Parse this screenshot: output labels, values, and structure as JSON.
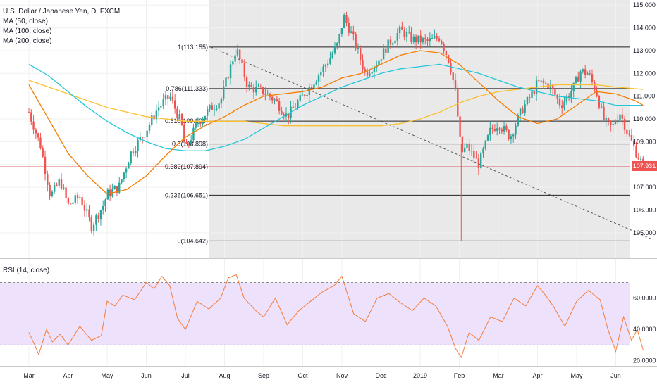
{
  "legend": {
    "title": "U.S. Dollar / Japanese Yen, D, FXCM",
    "ma50": "MA (50, close)",
    "ma100": "MA (100, close)",
    "ma200": "MA (200, close)",
    "rsi": "RSI (14, close)"
  },
  "colors": {
    "up": "#26a69a",
    "down": "#ef5350",
    "ma50": "#f57c00",
    "ma100": "#26c6da",
    "ma200": "#fbc02d",
    "rsi": "#f57c3a",
    "rsi_band": "#ede1fb",
    "shade": "#e9e9e9",
    "fib_line": "#222222",
    "fib_382": "#d32f2f"
  },
  "chart_data": [
    {
      "type": "candlestick",
      "symbol": "U.S. Dollar / Japanese Yen, D, FXCM",
      "x_ticks": [
        "Mar",
        "Apr",
        "May",
        "Jun",
        "Jul",
        "Aug",
        "Sep",
        "Oct",
        "Nov",
        "Dec",
        "2019",
        "Feb",
        "Mar",
        "Apr",
        "May",
        "Jun"
      ],
      "y_ticks": [
        "115.000",
        "114.000",
        "113.000",
        "112.000",
        "111.000",
        "110.000",
        "109.000",
        "108.000",
        "107.000",
        "106.000",
        "105.000"
      ],
      "ylim": [
        104.5,
        115.1
      ],
      "last_price": "107.931",
      "fib_levels": [
        {
          "label": "1(113.155)",
          "value": 113.155
        },
        {
          "label": "0.786(111.333)",
          "value": 111.333
        },
        {
          "label": "0.618(109.903)",
          "value": 109.903
        },
        {
          "label": "0.5(108.898)",
          "value": 108.898
        },
        {
          "label": "0.382(107.894)",
          "value": 107.894
        },
        {
          "label": "0.236(106.651)",
          "value": 106.651
        },
        {
          "label": "0(104.642)",
          "value": 104.642
        }
      ],
      "trend_line": {
        "from": {
          "x": "Jul",
          "y": 113.155
        },
        "to": {
          "x": "Jun",
          "y": 104.7
        }
      },
      "price_path": [
        {
          "x": 0.0,
          "y": 110.3
        },
        {
          "x": 0.3,
          "y": 108.8
        },
        {
          "x": 0.55,
          "y": 106.6
        },
        {
          "x": 0.8,
          "y": 107.3
        },
        {
          "x": 1.0,
          "y": 106.2
        },
        {
          "x": 1.3,
          "y": 106.6
        },
        {
          "x": 1.6,
          "y": 105.3
        },
        {
          "x": 1.9,
          "y": 106.2
        },
        {
          "x": 2.0,
          "y": 106.7
        },
        {
          "x": 2.3,
          "y": 107.0
        },
        {
          "x": 2.6,
          "y": 108.5
        },
        {
          "x": 3.0,
          "y": 109.5
        },
        {
          "x": 3.3,
          "y": 110.5
        },
        {
          "x": 3.6,
          "y": 111.0
        },
        {
          "x": 3.9,
          "y": 109.8
        },
        {
          "x": 4.0,
          "y": 108.6
        },
        {
          "x": 4.3,
          "y": 109.8
        },
        {
          "x": 4.6,
          "y": 110.4
        },
        {
          "x": 4.9,
          "y": 110.8
        },
        {
          "x": 5.1,
          "y": 112.0
        },
        {
          "x": 5.3,
          "y": 113.1
        },
        {
          "x": 5.6,
          "y": 111.4
        },
        {
          "x": 6.0,
          "y": 111.2
        },
        {
          "x": 6.3,
          "y": 110.8
        },
        {
          "x": 6.6,
          "y": 110.1
        },
        {
          "x": 7.0,
          "y": 111.0
        },
        {
          "x": 7.3,
          "y": 111.7
        },
        {
          "x": 7.6,
          "y": 112.4
        },
        {
          "x": 7.9,
          "y": 113.3
        },
        {
          "x": 8.05,
          "y": 114.5
        },
        {
          "x": 8.3,
          "y": 113.5
        },
        {
          "x": 8.6,
          "y": 112.0
        },
        {
          "x": 8.9,
          "y": 112.5
        },
        {
          "x": 9.2,
          "y": 113.3
        },
        {
          "x": 9.5,
          "y": 113.9
        },
        {
          "x": 9.8,
          "y": 113.5
        },
        {
          "x": 10.2,
          "y": 113.4
        },
        {
          "x": 10.5,
          "y": 113.6
        },
        {
          "x": 10.75,
          "y": 112.5
        },
        {
          "x": 10.9,
          "y": 111.2
        },
        {
          "x": 11.05,
          "y": 108.5
        },
        {
          "x": 11.2,
          "y": 108.8
        },
        {
          "x": 11.5,
          "y": 108.0
        },
        {
          "x": 11.8,
          "y": 109.5
        },
        {
          "x": 12.0,
          "y": 109.8
        },
        {
          "x": 12.3,
          "y": 109.2
        },
        {
          "x": 12.6,
          "y": 110.4
        },
        {
          "x": 12.9,
          "y": 111.2
        },
        {
          "x": 13.0,
          "y": 111.6
        },
        {
          "x": 13.3,
          "y": 111.5
        },
        {
          "x": 13.6,
          "y": 110.6
        },
        {
          "x": 13.9,
          "y": 111.3
        },
        {
          "x": 14.1,
          "y": 112.1
        },
        {
          "x": 14.3,
          "y": 112.0
        },
        {
          "x": 14.5,
          "y": 111.2
        },
        {
          "x": 14.7,
          "y": 109.9
        },
        {
          "x": 14.9,
          "y": 109.6
        },
        {
          "x": 15.1,
          "y": 110.3
        },
        {
          "x": 15.3,
          "y": 109.4
        },
        {
          "x": 15.5,
          "y": 108.6
        },
        {
          "x": 15.7,
          "y": 107.95
        }
      ],
      "ma50": [
        {
          "x": 0.0,
          "y": 111.5
        },
        {
          "x": 0.5,
          "y": 110.0
        },
        {
          "x": 1.0,
          "y": 108.5
        },
        {
          "x": 1.5,
          "y": 107.5
        },
        {
          "x": 2.0,
          "y": 106.7
        },
        {
          "x": 2.5,
          "y": 106.9
        },
        {
          "x": 3.0,
          "y": 107.5
        },
        {
          "x": 3.5,
          "y": 108.4
        },
        {
          "x": 4.0,
          "y": 109.2
        },
        {
          "x": 4.5,
          "y": 109.7
        },
        {
          "x": 5.0,
          "y": 110.1
        },
        {
          "x": 5.5,
          "y": 110.6
        },
        {
          "x": 6.0,
          "y": 111.0
        },
        {
          "x": 6.5,
          "y": 111.1
        },
        {
          "x": 7.0,
          "y": 111.2
        },
        {
          "x": 7.5,
          "y": 111.4
        },
        {
          "x": 8.0,
          "y": 111.8
        },
        {
          "x": 8.5,
          "y": 112.0
        },
        {
          "x": 9.0,
          "y": 112.4
        },
        {
          "x": 9.5,
          "y": 112.8
        },
        {
          "x": 10.0,
          "y": 113.0
        },
        {
          "x": 10.5,
          "y": 112.9
        },
        {
          "x": 11.0,
          "y": 112.4
        },
        {
          "x": 11.5,
          "y": 111.6
        },
        {
          "x": 12.0,
          "y": 110.8
        },
        {
          "x": 12.5,
          "y": 110.1
        },
        {
          "x": 13.0,
          "y": 109.8
        },
        {
          "x": 13.5,
          "y": 110.0
        },
        {
          "x": 14.0,
          "y": 110.6
        },
        {
          "x": 14.5,
          "y": 111.2
        },
        {
          "x": 15.0,
          "y": 111.1
        },
        {
          "x": 15.5,
          "y": 110.8
        },
        {
          "x": 15.7,
          "y": 110.6
        }
      ],
      "ma100": [
        {
          "x": 0.0,
          "y": 112.4
        },
        {
          "x": 0.5,
          "y": 111.9
        },
        {
          "x": 1.0,
          "y": 111.2
        },
        {
          "x": 1.5,
          "y": 110.5
        },
        {
          "x": 2.0,
          "y": 109.9
        },
        {
          "x": 2.5,
          "y": 109.4
        },
        {
          "x": 3.0,
          "y": 109.0
        },
        {
          "x": 3.5,
          "y": 108.7
        },
        {
          "x": 4.0,
          "y": 108.6
        },
        {
          "x": 4.5,
          "y": 108.6
        },
        {
          "x": 5.0,
          "y": 108.8
        },
        {
          "x": 5.5,
          "y": 109.1
        },
        {
          "x": 6.0,
          "y": 109.6
        },
        {
          "x": 6.5,
          "y": 110.1
        },
        {
          "x": 7.0,
          "y": 110.6
        },
        {
          "x": 7.5,
          "y": 111.0
        },
        {
          "x": 8.0,
          "y": 111.4
        },
        {
          "x": 8.5,
          "y": 111.7
        },
        {
          "x": 9.0,
          "y": 112.0
        },
        {
          "x": 9.5,
          "y": 112.2
        },
        {
          "x": 10.0,
          "y": 112.3
        },
        {
          "x": 10.5,
          "y": 112.4
        },
        {
          "x": 11.0,
          "y": 112.2
        },
        {
          "x": 11.5,
          "y": 112.0
        },
        {
          "x": 12.0,
          "y": 111.7
        },
        {
          "x": 12.5,
          "y": 111.4
        },
        {
          "x": 13.0,
          "y": 111.2
        },
        {
          "x": 13.5,
          "y": 111.0
        },
        {
          "x": 14.0,
          "y": 110.9
        },
        {
          "x": 14.5,
          "y": 110.8
        },
        {
          "x": 15.0,
          "y": 110.6
        },
        {
          "x": 15.7,
          "y": 110.6
        }
      ],
      "ma200": [
        {
          "x": 0.0,
          "y": 111.7
        },
        {
          "x": 0.5,
          "y": 111.4
        },
        {
          "x": 1.0,
          "y": 111.1
        },
        {
          "x": 1.5,
          "y": 110.8
        },
        {
          "x": 2.0,
          "y": 110.5
        },
        {
          "x": 2.5,
          "y": 110.3
        },
        {
          "x": 3.0,
          "y": 110.1
        },
        {
          "x": 3.5,
          "y": 110.0
        },
        {
          "x": 4.0,
          "y": 109.9
        },
        {
          "x": 4.5,
          "y": 109.9
        },
        {
          "x": 5.0,
          "y": 109.9
        },
        {
          "x": 5.5,
          "y": 109.9
        },
        {
          "x": 6.0,
          "y": 109.8
        },
        {
          "x": 6.5,
          "y": 109.7
        },
        {
          "x": 7.0,
          "y": 109.7
        },
        {
          "x": 7.5,
          "y": 109.7
        },
        {
          "x": 8.0,
          "y": 109.7
        },
        {
          "x": 8.5,
          "y": 109.7
        },
        {
          "x": 9.0,
          "y": 109.7
        },
        {
          "x": 9.5,
          "y": 109.8
        },
        {
          "x": 10.0,
          "y": 110.0
        },
        {
          "x": 10.5,
          "y": 110.3
        },
        {
          "x": 11.0,
          "y": 110.7
        },
        {
          "x": 11.5,
          "y": 111.0
        },
        {
          "x": 12.0,
          "y": 111.2
        },
        {
          "x": 12.5,
          "y": 111.3
        },
        {
          "x": 13.0,
          "y": 111.4
        },
        {
          "x": 13.5,
          "y": 111.5
        },
        {
          "x": 14.0,
          "y": 111.5
        },
        {
          "x": 14.5,
          "y": 111.5
        },
        {
          "x": 15.0,
          "y": 111.4
        },
        {
          "x": 15.7,
          "y": 111.3
        }
      ]
    },
    {
      "type": "line",
      "title": "RSI (14, close)",
      "y_ticks": [
        "60.0000",
        "40.0000",
        "20.0000"
      ],
      "ylim": [
        18,
        77
      ],
      "bands": [
        30,
        70
      ],
      "values": [
        {
          "x": 0.0,
          "y": 38
        },
        {
          "x": 0.15,
          "y": 30
        },
        {
          "x": 0.25,
          "y": 24
        },
        {
          "x": 0.45,
          "y": 40
        },
        {
          "x": 0.6,
          "y": 32
        },
        {
          "x": 0.8,
          "y": 37
        },
        {
          "x": 1.0,
          "y": 30
        },
        {
          "x": 1.3,
          "y": 42
        },
        {
          "x": 1.6,
          "y": 33
        },
        {
          "x": 1.85,
          "y": 36
        },
        {
          "x": 2.0,
          "y": 58
        },
        {
          "x": 2.2,
          "y": 55
        },
        {
          "x": 2.4,
          "y": 62
        },
        {
          "x": 2.7,
          "y": 59
        },
        {
          "x": 3.0,
          "y": 70
        },
        {
          "x": 3.2,
          "y": 66
        },
        {
          "x": 3.4,
          "y": 74
        },
        {
          "x": 3.6,
          "y": 68
        },
        {
          "x": 3.8,
          "y": 47
        },
        {
          "x": 4.0,
          "y": 40
        },
        {
          "x": 4.3,
          "y": 58
        },
        {
          "x": 4.6,
          "y": 53
        },
        {
          "x": 4.9,
          "y": 60
        },
        {
          "x": 5.1,
          "y": 73
        },
        {
          "x": 5.3,
          "y": 75
        },
        {
          "x": 5.5,
          "y": 60
        },
        {
          "x": 5.8,
          "y": 52
        },
        {
          "x": 6.0,
          "y": 48
        },
        {
          "x": 6.3,
          "y": 60
        },
        {
          "x": 6.6,
          "y": 43
        },
        {
          "x": 6.9,
          "y": 52
        },
        {
          "x": 7.2,
          "y": 58
        },
        {
          "x": 7.5,
          "y": 64
        },
        {
          "x": 7.8,
          "y": 68
        },
        {
          "x": 8.0,
          "y": 74
        },
        {
          "x": 8.3,
          "y": 50
        },
        {
          "x": 8.6,
          "y": 45
        },
        {
          "x": 8.9,
          "y": 60
        },
        {
          "x": 9.2,
          "y": 63
        },
        {
          "x": 9.5,
          "y": 57
        },
        {
          "x": 9.8,
          "y": 52
        },
        {
          "x": 10.1,
          "y": 60
        },
        {
          "x": 10.4,
          "y": 55
        },
        {
          "x": 10.7,
          "y": 42
        },
        {
          "x": 10.9,
          "y": 28
        },
        {
          "x": 11.05,
          "y": 22
        },
        {
          "x": 11.25,
          "y": 38
        },
        {
          "x": 11.5,
          "y": 33
        },
        {
          "x": 11.8,
          "y": 48
        },
        {
          "x": 12.1,
          "y": 45
        },
        {
          "x": 12.4,
          "y": 60
        },
        {
          "x": 12.7,
          "y": 55
        },
        {
          "x": 13.0,
          "y": 68
        },
        {
          "x": 13.2,
          "y": 62
        },
        {
          "x": 13.4,
          "y": 55
        },
        {
          "x": 13.7,
          "y": 42
        },
        {
          "x": 14.0,
          "y": 58
        },
        {
          "x": 14.3,
          "y": 65
        },
        {
          "x": 14.6,
          "y": 59
        },
        {
          "x": 14.8,
          "y": 40
        },
        {
          "x": 15.0,
          "y": 26
        },
        {
          "x": 15.2,
          "y": 48
        },
        {
          "x": 15.4,
          "y": 33
        },
        {
          "x": 15.55,
          "y": 40
        },
        {
          "x": 15.7,
          "y": 27
        }
      ]
    }
  ]
}
